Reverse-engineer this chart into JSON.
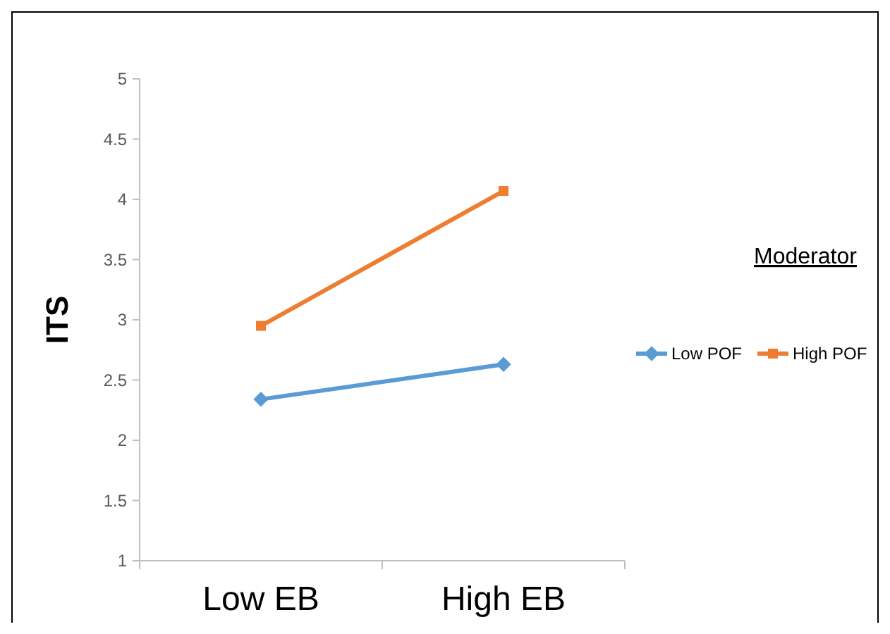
{
  "chart_data": {
    "type": "line",
    "ylabel": "ITS",
    "legend_title": "Moderator",
    "legend": "right",
    "grid": false,
    "categories": [
      "Low EB",
      "High EB"
    ],
    "ylim": [
      1,
      5
    ],
    "yticks": [
      1,
      1.5,
      2,
      2.5,
      3,
      3.5,
      4,
      4.5,
      5
    ],
    "series": [
      {
        "name": "Low POF",
        "color": "#5b9bd5",
        "marker": "diamond",
        "values": [
          2.34,
          2.63
        ]
      },
      {
        "name": "High POF",
        "color": "#ed7d31",
        "marker": "square",
        "values": [
          2.95,
          4.07
        ]
      }
    ]
  }
}
